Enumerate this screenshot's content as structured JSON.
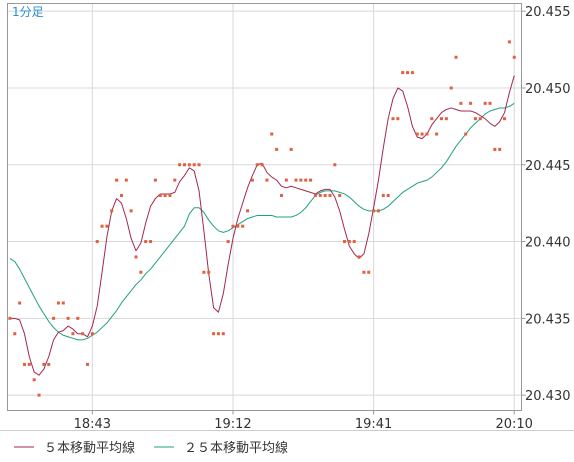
{
  "chart_data": {
    "type": "line",
    "timeframe_label": "1分足",
    "title": "",
    "xlabel": "",
    "ylabel": "",
    "ylim": [
      20.429,
      20.4555
    ],
    "y_ticks": [
      "20.430",
      "20.435",
      "20.440",
      "20.445",
      "20.450",
      "20.455"
    ],
    "x_ticks": [
      {
        "label": "18:43",
        "index": 17
      },
      {
        "label": "19:12",
        "index": 46
      },
      {
        "label": "19:41",
        "index": 75
      },
      {
        "label": "20:10",
        "index": 104
      }
    ],
    "x_range": [
      -0.5,
      105.5
    ],
    "grid": true,
    "legend_position": "bottom-left",
    "colors": {
      "prices": "#e06040",
      "ma5": "#a3284e",
      "ma25": "#20a080",
      "grid": "#d8d8d8",
      "timeframe": "#2a8fd0"
    },
    "prices": [
      20.435,
      20.434,
      20.436,
      20.432,
      20.432,
      20.431,
      20.43,
      20.432,
      20.432,
      20.435,
      20.436,
      20.436,
      20.435,
      20.434,
      20.435,
      20.434,
      20.432,
      20.434,
      20.44,
      20.441,
      20.441,
      20.442,
      20.444,
      20.443,
      20.444,
      20.442,
      20.439,
      20.438,
      20.44,
      20.44,
      20.444,
      20.443,
      20.443,
      20.443,
      20.444,
      20.445,
      20.445,
      20.445,
      20.445,
      20.445,
      20.438,
      20.438,
      20.434,
      20.434,
      20.434,
      20.44,
      20.441,
      20.441,
      20.441,
      20.442,
      20.444,
      20.445,
      20.445,
      20.444,
      20.447,
      20.446,
      20.443,
      20.444,
      20.446,
      20.444,
      20.444,
      20.444,
      20.444,
      20.443,
      20.443,
      20.443,
      20.443,
      20.445,
      20.443,
      20.44,
      20.44,
      20.44,
      20.439,
      20.438,
      20.438,
      20.442,
      20.442,
      20.443,
      20.443,
      20.448,
      20.448,
      20.451,
      20.451,
      20.451,
      20.447,
      20.447,
      20.447,
      20.448,
      20.447,
      20.448,
      20.448,
      20.45,
      20.452,
      20.449,
      20.447,
      20.449,
      20.448,
      20.448,
      20.449,
      20.449,
      20.446,
      20.446,
      20.448,
      20.453,
      20.452
    ],
    "series": [
      {
        "name": "５本移動平均線",
        "values": [
          20.435,
          20.435,
          20.4349,
          20.434,
          20.4325,
          20.4315,
          20.4313,
          20.4317,
          20.4325,
          20.4336,
          20.4341,
          20.4342,
          20.4345,
          20.4343,
          20.434,
          20.434,
          20.4338,
          20.4345,
          20.4358,
          20.438,
          20.4403,
          20.442,
          20.4428,
          20.4425,
          20.4415,
          20.4402,
          20.4394,
          20.4399,
          20.4412,
          20.4423,
          20.4428,
          20.4431,
          20.4431,
          20.4431,
          20.4432,
          20.4439,
          20.4443,
          20.4448,
          20.4446,
          20.4433,
          20.4407,
          20.4379,
          20.4357,
          20.4354,
          20.4366,
          20.4385,
          20.4402,
          20.4415,
          20.4425,
          20.4435,
          20.4443,
          20.445,
          20.4451,
          20.4445,
          20.4442,
          20.444,
          20.4436,
          20.4435,
          20.4436,
          20.4435,
          20.4434,
          20.4433,
          20.4432,
          20.4431,
          20.4433,
          20.4434,
          20.4434,
          20.4429,
          20.442,
          20.4408,
          20.4397,
          20.4392,
          20.4389,
          20.4392,
          20.4405,
          20.4422,
          20.444,
          20.4461,
          20.448,
          20.4493,
          20.45,
          20.4498,
          20.4488,
          20.4475,
          20.4468,
          20.4467,
          20.447,
          20.4476,
          20.448,
          20.4484,
          20.4486,
          20.4487,
          20.4486,
          20.4485,
          20.4485,
          20.4485,
          20.4484,
          20.4482,
          20.448,
          20.4477,
          20.4475,
          20.4478,
          20.4484,
          20.4497,
          20.4508
        ]
      },
      {
        "name": "２５本移動平均線",
        "values": [
          20.4389,
          20.4387,
          20.4382,
          20.4376,
          20.437,
          20.4364,
          20.4358,
          20.4353,
          20.4348,
          20.4344,
          20.4341,
          20.4339,
          20.4338,
          20.4337,
          20.4336,
          20.4336,
          20.4337,
          20.4339,
          20.4341,
          20.4344,
          20.4347,
          20.4351,
          20.4355,
          20.436,
          20.4364,
          20.4368,
          20.4372,
          20.4375,
          20.4379,
          20.4382,
          20.4386,
          20.439,
          20.4394,
          20.4398,
          20.4402,
          20.4406,
          20.441,
          20.4418,
          20.4422,
          20.4422,
          20.4419,
          20.4414,
          20.441,
          20.4407,
          20.4406,
          20.4407,
          20.4409,
          20.4411,
          20.4413,
          20.4415,
          20.4416,
          20.4417,
          20.4417,
          20.4417,
          20.4417,
          20.4416,
          20.4416,
          20.4416,
          20.4416,
          20.4417,
          20.4419,
          20.4422,
          20.4426,
          20.443,
          20.4432,
          20.4433,
          20.4433,
          20.4433,
          20.4432,
          20.4431,
          20.4429,
          20.4426,
          20.4423,
          20.4421,
          20.442,
          20.442,
          20.442,
          20.4421,
          20.4423,
          20.4426,
          20.4429,
          20.4432,
          20.4434,
          20.4436,
          20.4438,
          20.4439,
          20.444,
          20.4442,
          20.4445,
          20.4448,
          20.4452,
          20.4457,
          20.4462,
          20.4466,
          20.447,
          20.4474,
          20.4477,
          20.448,
          20.4483,
          20.4485,
          20.4486,
          20.4487,
          20.4487,
          20.4488,
          20.449
        ]
      }
    ]
  }
}
